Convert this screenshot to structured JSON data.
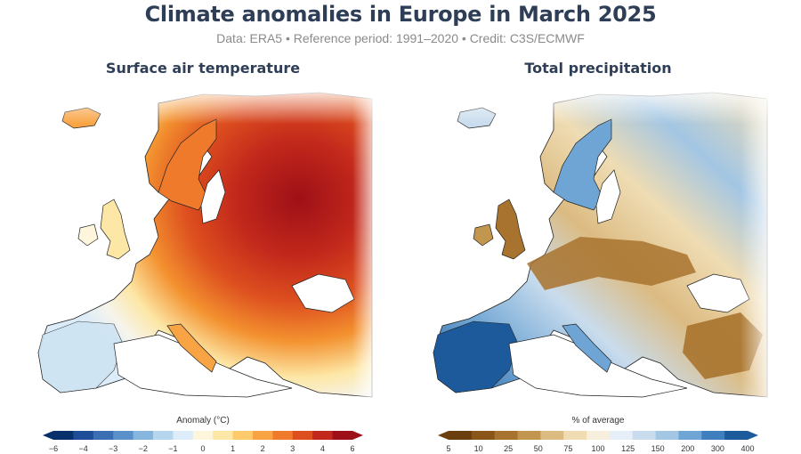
{
  "header": {
    "title": "Climate anomalies in Europe in March 2025",
    "subtitle": "Data: ERA5 • Reference period: 1991–2020 • Credit: C3S/ECMWF"
  },
  "left_panel": {
    "title": "Surface air temperature",
    "legend_title": "Anomaly (°C)",
    "tick_labels": [
      "−6",
      "−4",
      "−3",
      "−2",
      "−1",
      "0",
      "1",
      "2",
      "3",
      "4",
      "6"
    ],
    "colors": [
      "#08306b",
      "#1f4e99",
      "#3a6fb4",
      "#5b91c9",
      "#86b6dd",
      "#b6d6ee",
      "#dcecf8",
      "#fdf6dc",
      "#fde7a6",
      "#fdca6c",
      "#f9a444",
      "#ef7a2b",
      "#dd4f1f",
      "#c2281b",
      "#9e1017"
    ]
  },
  "right_panel": {
    "title": "Total precipitation",
    "legend_title": "% of average",
    "tick_labels": [
      "5",
      "10",
      "25",
      "50",
      "75",
      "100",
      "125",
      "150",
      "200",
      "300",
      "400"
    ],
    "colors": [
      "#6b3e0e",
      "#8a5519",
      "#a8732e",
      "#c39650",
      "#dcbb82",
      "#efdcb3",
      "#f7eedc",
      "#e6eff7",
      "#c9dced",
      "#a3c6e4",
      "#6fa5d4",
      "#3f7fbe",
      "#1d5a9c"
    ]
  }
}
